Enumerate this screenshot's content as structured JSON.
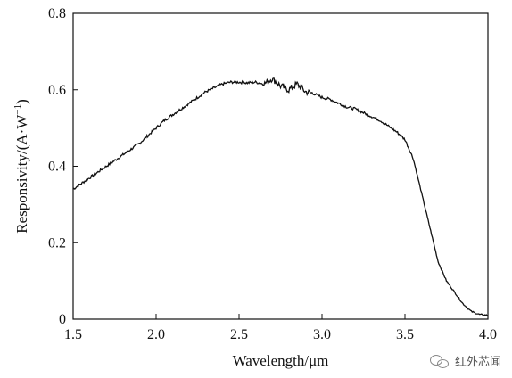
{
  "chart_data": {
    "type": "line",
    "title": "",
    "xlabel": "Wavelength/μm",
    "ylabel_main": "Responsivity/(A·W",
    "ylabel_sup": "−1",
    "ylabel_close": ")",
    "xlim": [
      1.5,
      4.0
    ],
    "ylim": [
      0,
      0.8
    ],
    "xticks": [
      1.5,
      2.0,
      2.5,
      3.0,
      3.5,
      4.0
    ],
    "yticks": [
      0,
      0.2,
      0.4,
      0.6,
      0.8
    ],
    "xtick_labels": [
      "1.5",
      "2.0",
      "2.5",
      "3.0",
      "3.5",
      "4.0"
    ],
    "ytick_labels": [
      "0",
      "0.2",
      "0.4",
      "0.6",
      "0.8"
    ],
    "grid": false,
    "series": [
      {
        "color": "#111111",
        "x": [
          1.5,
          1.55,
          1.6,
          1.65,
          1.7,
          1.75,
          1.8,
          1.85,
          1.9,
          1.95,
          2.0,
          2.05,
          2.1,
          2.15,
          2.2,
          2.25,
          2.3,
          2.35,
          2.4,
          2.45,
          2.5,
          2.55,
          2.6,
          2.65,
          2.7,
          2.75,
          2.8,
          2.85,
          2.9,
          2.95,
          3.0,
          3.05,
          3.1,
          3.15,
          3.2,
          3.25,
          3.3,
          3.35,
          3.4,
          3.45,
          3.5,
          3.55,
          3.6,
          3.65,
          3.7,
          3.75,
          3.8,
          3.85,
          3.9,
          3.95,
          4.0
        ],
        "y": [
          0.34,
          0.355,
          0.37,
          0.385,
          0.4,
          0.415,
          0.43,
          0.445,
          0.46,
          0.48,
          0.5,
          0.52,
          0.535,
          0.55,
          0.565,
          0.58,
          0.595,
          0.605,
          0.615,
          0.62,
          0.62,
          0.618,
          0.62,
          0.615,
          0.63,
          0.61,
          0.6,
          0.615,
          0.595,
          0.59,
          0.58,
          0.575,
          0.565,
          0.555,
          0.55,
          0.54,
          0.53,
          0.52,
          0.505,
          0.49,
          0.47,
          0.42,
          0.33,
          0.24,
          0.15,
          0.1,
          0.07,
          0.04,
          0.02,
          0.012,
          0.01
        ]
      }
    ]
  },
  "watermark": {
    "text": "红外芯闻",
    "icon": "wechat-icon"
  }
}
